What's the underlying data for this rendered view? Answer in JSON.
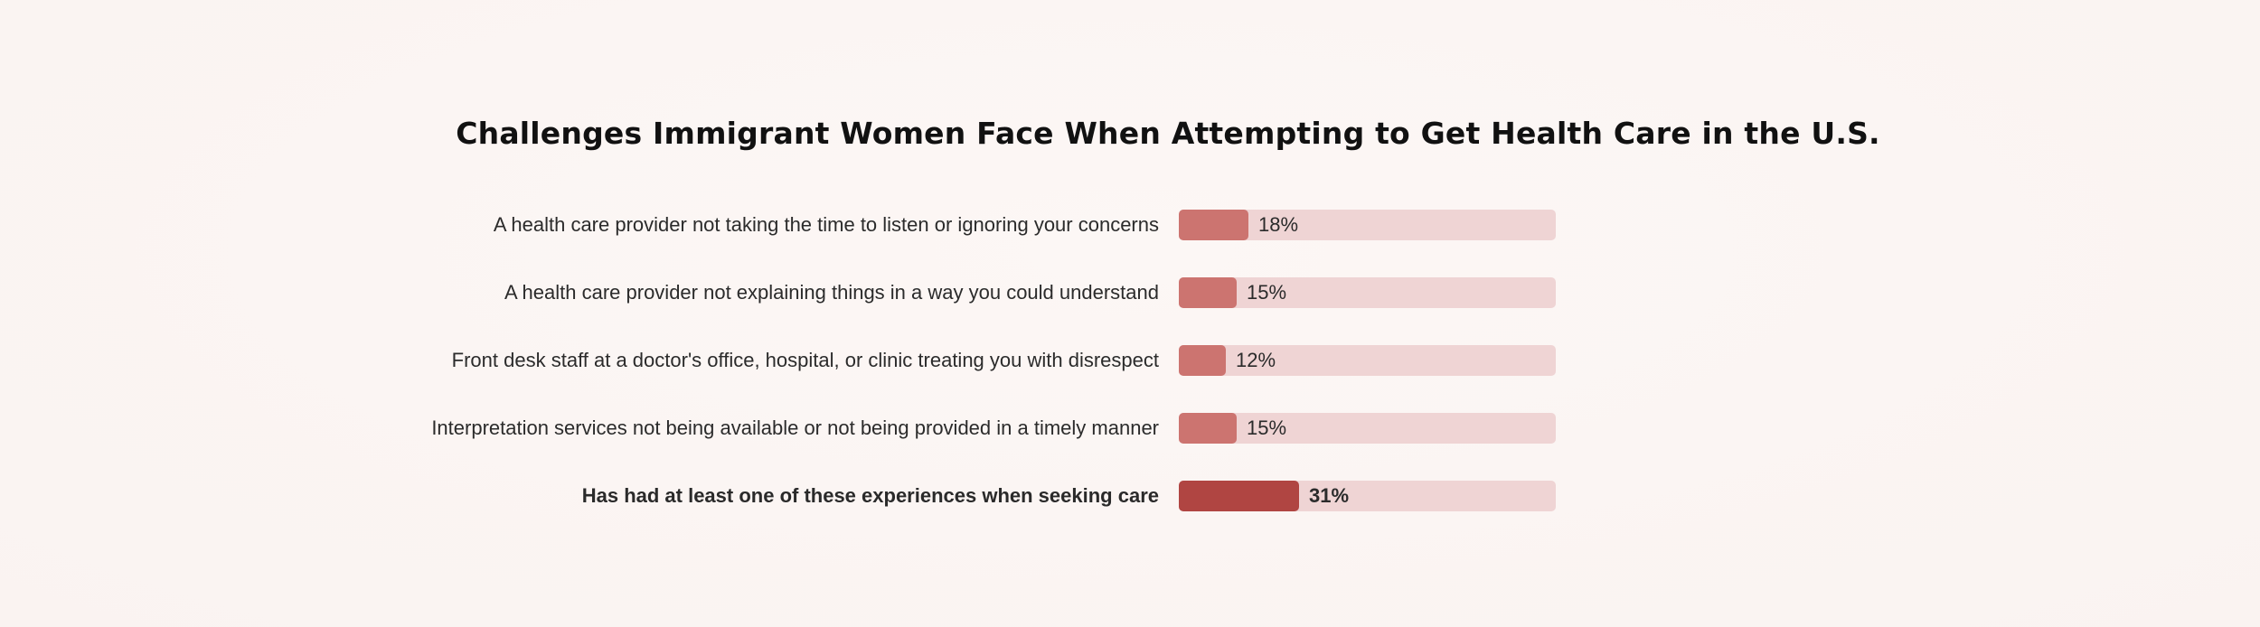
{
  "chart_data": {
    "type": "bar",
    "orientation": "horizontal",
    "title": "Challenges Immigrant Women Face When Attempting to Get Health Care in the U.S.",
    "categories": [
      "A health care provider not taking the time to listen or ignoring your concerns",
      "A health care provider not explaining things in a way you could understand",
      "Front desk staff at a doctor's office, hospital, or clinic treating you with disrespect",
      "Interpretation services not being available or not being provided in a timely manner",
      "Has had at least one of these experiences when seeking care"
    ],
    "values": [
      18,
      15,
      12,
      15,
      31
    ],
    "value_labels": [
      "18%",
      "15%",
      "12%",
      "15%",
      "31%"
    ],
    "xlim": [
      0,
      100
    ],
    "highlight_index": 4,
    "colors": {
      "bar": "#cc7470",
      "highlight_bar": "#b04542",
      "track": "#efd4d4"
    }
  }
}
